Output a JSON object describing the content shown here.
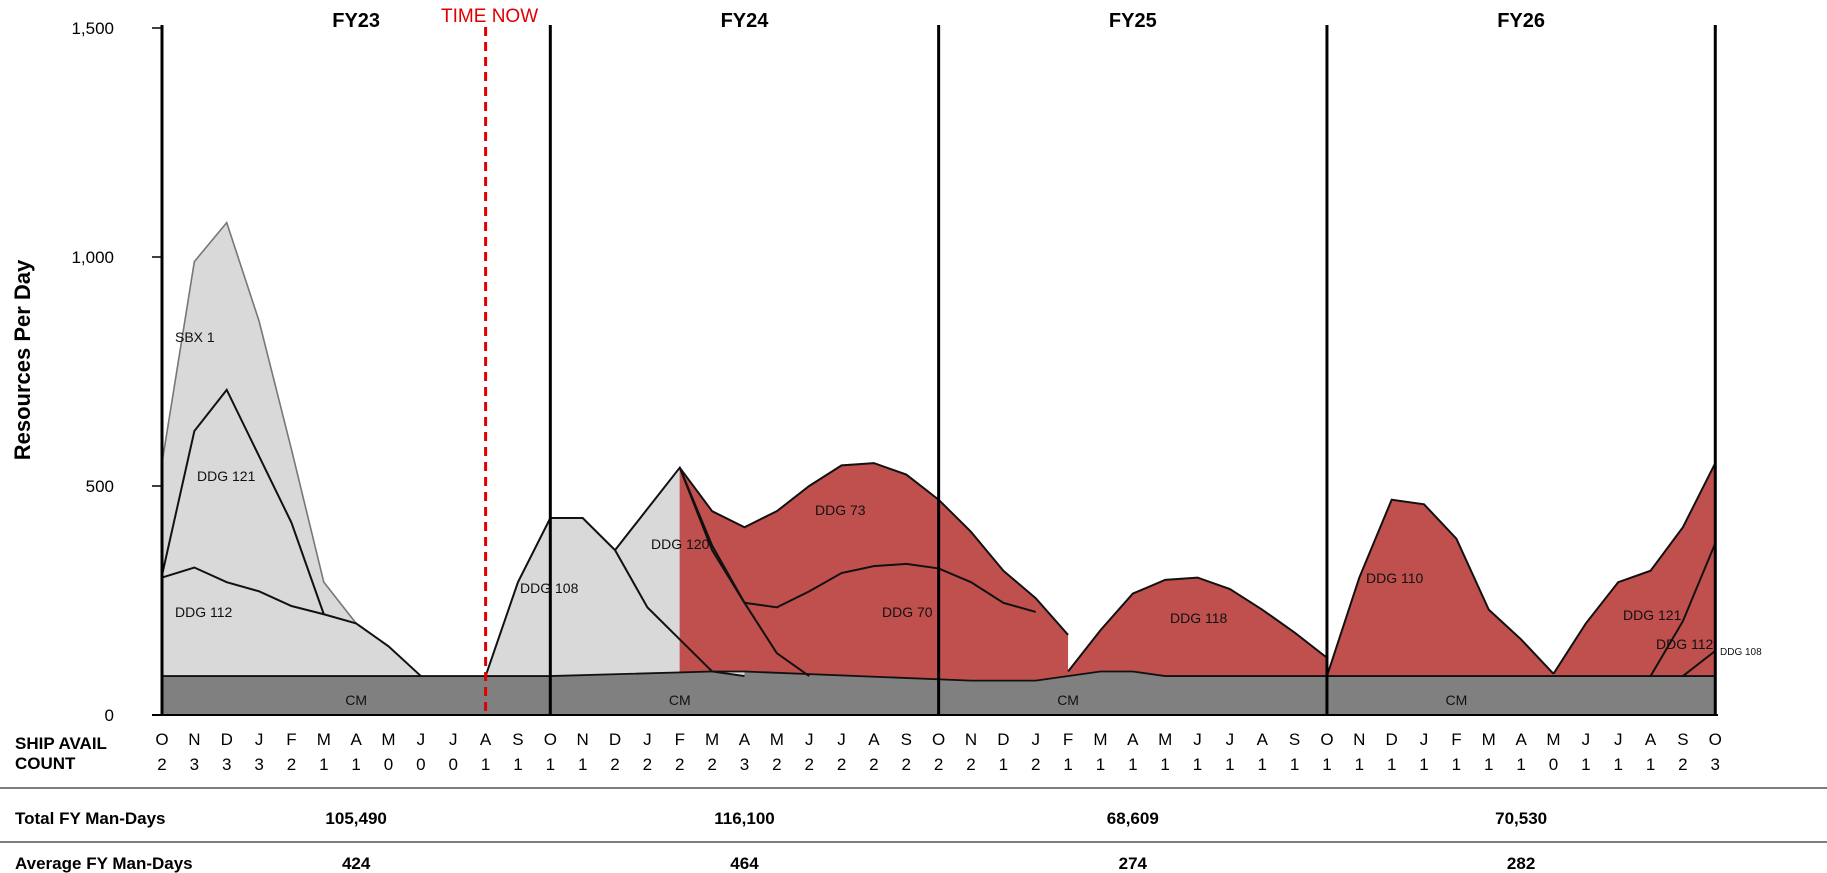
{
  "chart_data": {
    "type": "area",
    "title": "",
    "ylabel": "Resources Per Day",
    "ylim": [
      0,
      1500
    ],
    "yticks": [
      "0",
      "500",
      "1,000",
      "1,500"
    ],
    "ytick_values": [
      0,
      500,
      1000,
      1500
    ],
    "fiscal_years": [
      "FY23",
      "FY24",
      "FY25",
      "FY26"
    ],
    "time_now_label": "TIME NOW",
    "time_now_index": 10,
    "months": [
      "O",
      "N",
      "D",
      "J",
      "F",
      "M",
      "A",
      "M",
      "J",
      "J",
      "A",
      "S",
      "O",
      "N",
      "D",
      "J",
      "F",
      "M",
      "A",
      "M",
      "J",
      "J",
      "A",
      "S",
      "O",
      "N",
      "D",
      "J",
      "F",
      "M",
      "A",
      "M",
      "J",
      "J",
      "A",
      "S",
      "O",
      "N",
      "D",
      "J",
      "F",
      "M",
      "A",
      "M",
      "J",
      "J",
      "A",
      "S",
      "O"
    ],
    "row_titles": [
      "SHIP AVAIL",
      "COUNT"
    ],
    "ship_avail_count": [
      "2",
      "3",
      "3",
      "3",
      "2",
      "1",
      "1",
      "0",
      "0",
      "0",
      "1",
      "1",
      "1",
      "1",
      "2",
      "2",
      "2",
      "2",
      "3",
      "2",
      "2",
      "2",
      "2",
      "2",
      "2",
      "2",
      "1",
      "2",
      "1",
      "1",
      "1",
      "1",
      "1",
      "1",
      "1",
      "1",
      "1",
      "1",
      "1",
      "1",
      "1",
      "1",
      "1",
      "0",
      "1",
      "1",
      "1",
      "2",
      "3"
    ],
    "colors": {
      "cm": "#808080",
      "completed": "#d9d9d9",
      "planned": "#c0504d",
      "time_now": "#e00000"
    },
    "series": [
      {
        "name": "CM",
        "status": "cm",
        "x": [
          0,
          12,
          17,
          18,
          25,
          26,
          27,
          29,
          30,
          31,
          36,
          44,
          48
        ],
        "y": [
          85,
          85,
          95,
          95,
          75,
          75,
          75,
          95,
          95,
          85,
          85,
          85,
          85
        ]
      },
      {
        "name": "DDG 112",
        "status": "completed",
        "x": [
          0,
          1,
          2,
          3,
          4,
          5,
          6,
          7,
          8
        ],
        "y": [
          300,
          322,
          290,
          270,
          238,
          220,
          200,
          150,
          85
        ]
      },
      {
        "name": "DDG 121",
        "status": "completed",
        "x": [
          0,
          1,
          2,
          3,
          4,
          5
        ],
        "y": [
          305,
          620,
          710,
          565,
          420,
          220
        ]
      },
      {
        "name": "SBX 1",
        "status": "completed",
        "x": [
          0,
          1,
          2,
          3,
          4,
          5,
          6
        ],
        "y": [
          550,
          990,
          1075,
          860,
          580,
          290,
          200
        ]
      },
      {
        "name": "DDG 108",
        "status": "completed",
        "x": [
          10,
          11,
          12,
          13,
          14,
          15,
          16,
          17,
          18
        ],
        "y": [
          85,
          290,
          430,
          430,
          360,
          235,
          165,
          95,
          85
        ]
      },
      {
        "name": "DDG 120",
        "status": "completed",
        "x": [
          14,
          15,
          16,
          17,
          18,
          19,
          20
        ],
        "y": [
          360,
          450,
          540,
          360,
          245,
          135,
          85
        ]
      },
      {
        "name": "DDG 70",
        "status": "planned",
        "x": [
          16,
          17,
          18,
          19,
          20,
          21,
          22,
          23,
          24,
          25,
          26,
          27
        ],
        "y": [
          540,
          370,
          245,
          235,
          270,
          310,
          325,
          330,
          320,
          290,
          245,
          225
        ]
      },
      {
        "name": "DDG 73",
        "status": "planned",
        "x": [
          16,
          17,
          18,
          19,
          20,
          21,
          22,
          23,
          24,
          25,
          26,
          27,
          28
        ],
        "y": [
          540,
          445,
          410,
          445,
          500,
          545,
          550,
          525,
          470,
          400,
          315,
          255,
          175
        ]
      },
      {
        "name": "DDG 118",
        "status": "planned",
        "x": [
          28,
          29,
          30,
          31,
          32,
          33,
          34,
          35,
          36
        ],
        "y": [
          95,
          185,
          265,
          295,
          300,
          275,
          230,
          180,
          125
        ]
      },
      {
        "name": "DDG 110",
        "status": "planned",
        "x": [
          36,
          37,
          38,
          39,
          40,
          41,
          42,
          43
        ],
        "y": [
          85,
          300,
          470,
          460,
          385,
          230,
          165,
          90
        ]
      },
      {
        "name": "DDG 121",
        "status": "planned",
        "x": [
          43,
          44,
          45,
          46,
          47,
          48
        ],
        "y": [
          90,
          200,
          290,
          315,
          410,
          550
        ]
      },
      {
        "name": "DDG 112",
        "status": "planned",
        "x": [
          46,
          47,
          48
        ],
        "y": [
          85,
          205,
          375
        ]
      },
      {
        "name": "DDG 108",
        "status": "planned",
        "x": [
          47,
          48
        ],
        "y": [
          85,
          140
        ]
      },
      {
        "name": "CM",
        "status": "cm",
        "label_at": [
          6,
          16,
          28,
          40
        ]
      }
    ]
  },
  "summary": {
    "total_title": "Total FY Man-Days",
    "total_values": [
      "105,490",
      "116,100",
      "68,609",
      "70,530"
    ],
    "average_title": "Average FY Man-Days",
    "average_values": [
      "424",
      "464",
      "274",
      "282"
    ]
  }
}
